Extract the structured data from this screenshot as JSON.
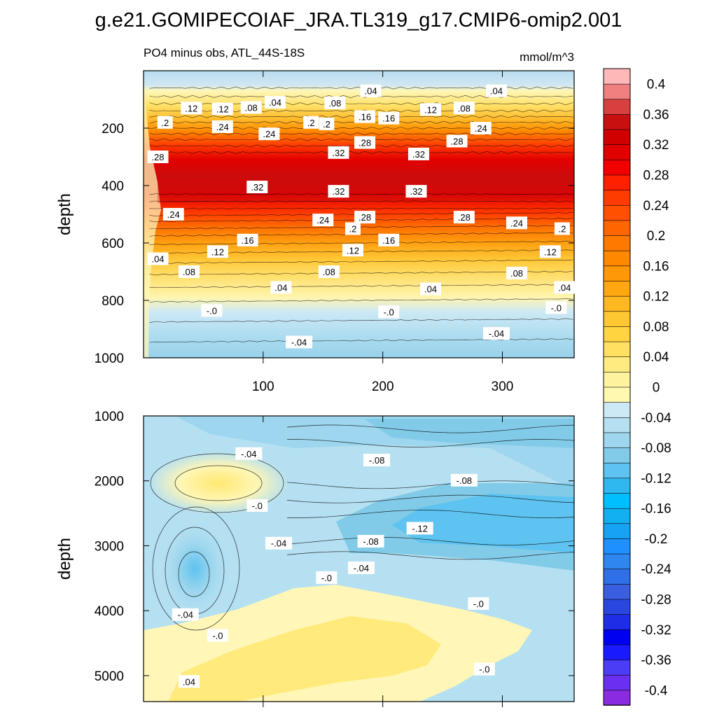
{
  "chart_data": {
    "type": "contour",
    "title": "g.e21.GOMIPECOIAF_JRA.TL319_g17.CMIP6-omip2.001",
    "subtitle_left": "PO4 minus obs, ATL_44S-18S",
    "subtitle_right": "mmol/m^3",
    "ylabel": "depth",
    "x_range": [
      0,
      360
    ],
    "x_ticks": [
      100,
      200,
      300
    ],
    "top_panel": {
      "ylim": [
        0,
        1000
      ],
      "y_ticks": [
        200,
        400,
        600,
        800,
        1000
      ],
      "contour_labels": [
        {
          "x": 110,
          "y": 110,
          "text": ".04"
        },
        {
          "x": 190,
          "y": 70,
          "text": ".04"
        },
        {
          "x": 295,
          "y": 70,
          "text": ".04"
        },
        {
          "x": 40,
          "y": 130,
          "text": ".12"
        },
        {
          "x": 66,
          "y": 133,
          "text": ".12"
        },
        {
          "x": 90,
          "y": 128,
          "text": ".08"
        },
        {
          "x": 160,
          "y": 112,
          "text": ".08"
        },
        {
          "x": 240,
          "y": 135,
          "text": ".12"
        },
        {
          "x": 268,
          "y": 130,
          "text": ".08"
        },
        {
          "x": 18,
          "y": 180,
          "text": ".2"
        },
        {
          "x": 66,
          "y": 195,
          "text": ".24"
        },
        {
          "x": 105,
          "y": 220,
          "text": ".24"
        },
        {
          "x": 140,
          "y": 180,
          "text": ".2"
        },
        {
          "x": 153,
          "y": 185,
          "text": ".2"
        },
        {
          "x": 185,
          "y": 160,
          "text": ".16"
        },
        {
          "x": 205,
          "y": 165,
          "text": ".16"
        },
        {
          "x": 185,
          "y": 250,
          "text": ".28"
        },
        {
          "x": 163,
          "y": 285,
          "text": ".32"
        },
        {
          "x": 230,
          "y": 290,
          "text": ".32"
        },
        {
          "x": 262,
          "y": 245,
          "text": ".28"
        },
        {
          "x": 282,
          "y": 200,
          "text": ".24"
        },
        {
          "x": 12,
          "y": 300,
          "text": ".28"
        },
        {
          "x": 95,
          "y": 405,
          "text": ".32"
        },
        {
          "x": 163,
          "y": 420,
          "text": ".32"
        },
        {
          "x": 228,
          "y": 420,
          "text": ".32"
        },
        {
          "x": 25,
          "y": 500,
          "text": ".24"
        },
        {
          "x": 150,
          "y": 520,
          "text": ".24"
        },
        {
          "x": 185,
          "y": 510,
          "text": ".28"
        },
        {
          "x": 268,
          "y": 510,
          "text": ".28"
        },
        {
          "x": 312,
          "y": 530,
          "text": ".24"
        },
        {
          "x": 175,
          "y": 550,
          "text": ".2"
        },
        {
          "x": 350,
          "y": 550,
          "text": ".2"
        },
        {
          "x": 87,
          "y": 590,
          "text": ".16"
        },
        {
          "x": 205,
          "y": 590,
          "text": ".16"
        },
        {
          "x": 62,
          "y": 630,
          "text": ".12"
        },
        {
          "x": 175,
          "y": 625,
          "text": ".12"
        },
        {
          "x": 340,
          "y": 630,
          "text": ".12"
        },
        {
          "x": 12,
          "y": 655,
          "text": ".04"
        },
        {
          "x": 38,
          "y": 700,
          "text": ".08"
        },
        {
          "x": 155,
          "y": 700,
          "text": ".08"
        },
        {
          "x": 312,
          "y": 705,
          "text": ".08"
        },
        {
          "x": 115,
          "y": 755,
          "text": ".04"
        },
        {
          "x": 240,
          "y": 760,
          "text": ".04"
        },
        {
          "x": 352,
          "y": 755,
          "text": ".04"
        },
        {
          "x": 57,
          "y": 835,
          "text": "-.0"
        },
        {
          "x": 205,
          "y": 840,
          "text": "-.0"
        },
        {
          "x": 345,
          "y": 825,
          "text": "-.0"
        },
        {
          "x": 130,
          "y": 945,
          "text": "-.04"
        },
        {
          "x": 295,
          "y": 915,
          "text": "-.04"
        }
      ]
    },
    "bottom_panel": {
      "ylim": [
        1000,
        5400
      ],
      "y_ticks": [
        1000,
        2000,
        3000,
        4000,
        5000
      ],
      "contour_labels": [
        {
          "x": 88,
          "y": 1580,
          "text": "-.04"
        },
        {
          "x": 195,
          "y": 1680,
          "text": "-.08"
        },
        {
          "x": 268,
          "y": 1990,
          "text": "-.08"
        },
        {
          "x": 95,
          "y": 2380,
          "text": "-.0"
        },
        {
          "x": 113,
          "y": 2960,
          "text": "-.04"
        },
        {
          "x": 231,
          "y": 2730,
          "text": "-.12"
        },
        {
          "x": 190,
          "y": 2930,
          "text": "-.08"
        },
        {
          "x": 182,
          "y": 3340,
          "text": "-.04"
        },
        {
          "x": 153,
          "y": 3490,
          "text": "-.0"
        },
        {
          "x": 280,
          "y": 3890,
          "text": "-.0"
        },
        {
          "x": 35,
          "y": 4060,
          "text": "-.04"
        },
        {
          "x": 62,
          "y": 4380,
          "text": "-.0"
        },
        {
          "x": 285,
          "y": 4900,
          "text": "-.0"
        },
        {
          "x": 38,
          "y": 5090,
          "text": ".04"
        }
      ]
    },
    "colorbar": {
      "levels": [
        -0.42,
        -0.4,
        -0.38,
        -0.36,
        -0.34,
        -0.32,
        -0.3,
        -0.28,
        -0.26,
        -0.24,
        -0.22,
        -0.2,
        -0.18,
        -0.16,
        -0.14,
        -0.12,
        -0.1,
        -0.08,
        -0.06,
        -0.04,
        -0.02,
        0,
        0.02,
        0.04,
        0.06,
        0.08,
        0.1,
        0.12,
        0.14,
        0.16,
        0.18,
        0.2,
        0.22,
        0.24,
        0.26,
        0.28,
        0.3,
        0.32,
        0.34,
        0.36,
        0.38,
        0.4,
        0.42
      ],
      "label_values": [
        "-0.4",
        "-0.36",
        "-0.32",
        "-0.28",
        "-0.24",
        "-0.2",
        "-0.16",
        "-0.12",
        "-0.08",
        "-0.04",
        "0",
        "0.04",
        "0.08",
        "0.12",
        "0.16",
        "0.2",
        "0.24",
        "0.28",
        "0.32",
        "0.36",
        "0.4"
      ],
      "colors": [
        "#8a2be2",
        "#6a2ff0",
        "#4b3cf5",
        "#1a1aff",
        "#0000f0",
        "#1e2de6",
        "#2a46e0",
        "#3a5ee0",
        "#2f6fe8",
        "#2f86f0",
        "#1e90ff",
        "#17a3f5",
        "#12b0f0",
        "#00bfff",
        "#2eb8ef",
        "#5ec3f0",
        "#82cbe8",
        "#9dd6ee",
        "#b5e0f2",
        "#cde9f5",
        "#fff8b0",
        "#fff3a0",
        "#ffeb80",
        "#ffe060",
        "#ffd440",
        "#ffc830",
        "#ffb820",
        "#ffa710",
        "#ff9808",
        "#ff8800",
        "#ff7800",
        "#ff6500",
        "#ff5000",
        "#ff3c00",
        "#ff2000",
        "#f00000",
        "#e00000",
        "#d00000",
        "#c81010",
        "#d84040",
        "#f08080",
        "#ffb8b8"
      ]
    }
  }
}
